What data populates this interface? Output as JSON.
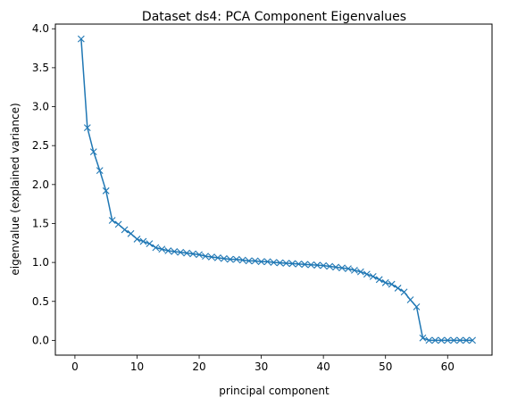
{
  "chart_data": {
    "type": "line",
    "title": "Dataset ds4: PCA Component Eigenvalues",
    "xlabel": "principal component",
    "ylabel": "eigenvalue (explained variance)",
    "xlim": [
      -3.15,
      67.15
    ],
    "ylim": [
      -0.19,
      4.06
    ],
    "xticks": [
      0,
      10,
      20,
      30,
      40,
      50,
      60
    ],
    "xtick_labels": [
      "0",
      "10",
      "20",
      "30",
      "40",
      "50",
      "60"
    ],
    "yticks": [
      0.0,
      0.5,
      1.0,
      1.5,
      2.0,
      2.5,
      3.0,
      3.5,
      4.0
    ],
    "ytick_labels": [
      "0.0",
      "0.5",
      "1.0",
      "1.5",
      "2.0",
      "2.5",
      "3.0",
      "3.5",
      "4.0"
    ],
    "grid": false,
    "marker": "x",
    "line_color": "#1f77b4",
    "series": [
      {
        "x": [
          1,
          2,
          3,
          4,
          5,
          6,
          7,
          8,
          9,
          10,
          11,
          12,
          13,
          14,
          15,
          16,
          17,
          18,
          19,
          20,
          21,
          22,
          23,
          24,
          25,
          26,
          27,
          28,
          29,
          30,
          31,
          32,
          33,
          34,
          35,
          36,
          37,
          38,
          39,
          40,
          41,
          42,
          43,
          44,
          45,
          46,
          47,
          48,
          49,
          50,
          51,
          52,
          53,
          54,
          55,
          56,
          57,
          58,
          59,
          60,
          61,
          62,
          63,
          64
        ],
        "values": [
          3.87,
          2.73,
          2.42,
          2.18,
          1.92,
          1.54,
          1.49,
          1.42,
          1.37,
          1.3,
          1.27,
          1.24,
          1.19,
          1.17,
          1.15,
          1.14,
          1.13,
          1.12,
          1.11,
          1.1,
          1.08,
          1.07,
          1.06,
          1.05,
          1.04,
          1.04,
          1.03,
          1.02,
          1.02,
          1.01,
          1.01,
          1.0,
          0.995,
          0.99,
          0.985,
          0.98,
          0.975,
          0.97,
          0.965,
          0.96,
          0.95,
          0.94,
          0.93,
          0.92,
          0.9,
          0.88,
          0.85,
          0.82,
          0.78,
          0.74,
          0.72,
          0.67,
          0.62,
          0.52,
          0.43,
          0.03,
          0.0,
          0.0,
          0.0,
          0.0,
          0.0,
          0.0,
          0.0,
          0.0
        ]
      }
    ]
  }
}
